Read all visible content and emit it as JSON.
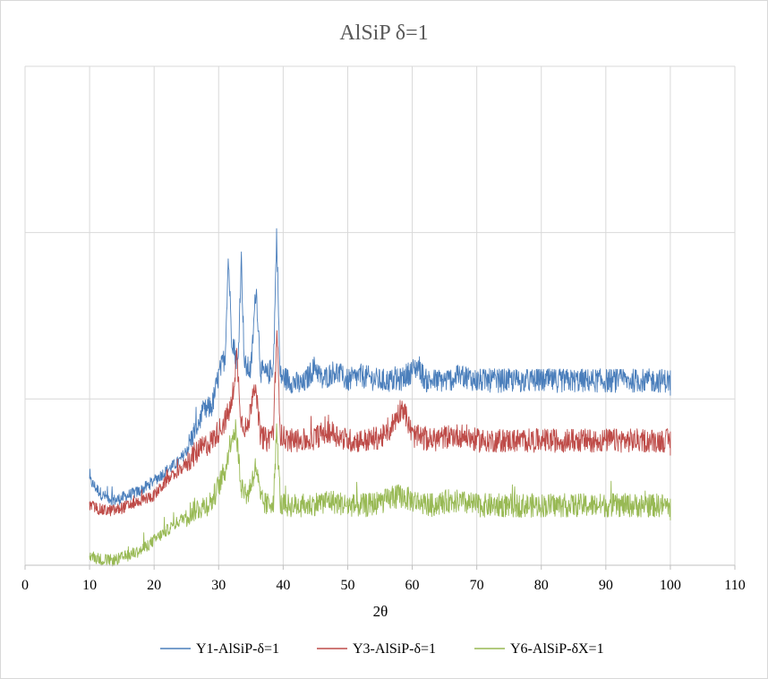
{
  "chart_data": {
    "type": "line",
    "title": "AlSiP δ=1",
    "xlabel": "2θ",
    "ylabel": "",
    "xlim": [
      0,
      110
    ],
    "xticks": [
      "0",
      "10",
      "20",
      "30",
      "40",
      "50",
      "60",
      "70",
      "80",
      "90",
      "100",
      "110"
    ],
    "grid": true,
    "legend_position": "bottom",
    "series": [
      {
        "name": "Y1-AlSiP-δ=1",
        "color": "#4a7ebb",
        "points": [
          [
            10,
            0.17
          ],
          [
            12,
            0.14
          ],
          [
            14,
            0.13
          ],
          [
            16,
            0.14
          ],
          [
            18,
            0.15
          ],
          [
            20,
            0.17
          ],
          [
            22,
            0.19
          ],
          [
            24,
            0.21
          ],
          [
            25,
            0.23
          ],
          [
            26,
            0.26
          ],
          [
            27,
            0.29
          ],
          [
            28,
            0.31
          ],
          [
            29,
            0.32
          ],
          [
            30,
            0.38
          ],
          [
            31,
            0.42
          ],
          [
            31.5,
            0.62
          ],
          [
            32,
            0.46
          ],
          [
            33,
            0.4
          ],
          [
            33.5,
            0.62
          ],
          [
            34,
            0.4
          ],
          [
            35,
            0.39
          ],
          [
            35.8,
            0.56
          ],
          [
            36.5,
            0.39
          ],
          [
            37.5,
            0.38
          ],
          [
            38.5,
            0.4
          ],
          [
            39,
            0.67
          ],
          [
            39.5,
            0.38
          ],
          [
            41,
            0.37
          ],
          [
            43,
            0.36
          ],
          [
            45,
            0.4
          ],
          [
            46,
            0.37
          ],
          [
            48,
            0.39
          ],
          [
            50,
            0.37
          ],
          [
            52,
            0.38
          ],
          [
            55,
            0.37
          ],
          [
            58,
            0.37
          ],
          [
            61,
            0.4
          ],
          [
            62,
            0.37
          ],
          [
            65,
            0.37
          ],
          [
            68,
            0.38
          ],
          [
            70,
            0.37
          ],
          [
            75,
            0.37
          ],
          [
            80,
            0.37
          ],
          [
            85,
            0.37
          ],
          [
            90,
            0.37
          ],
          [
            95,
            0.37
          ],
          [
            100,
            0.37
          ]
        ]
      },
      {
        "name": "Y3-AlSiP-δ=1",
        "color": "#be4b48",
        "points": [
          [
            10,
            0.12
          ],
          [
            12,
            0.11
          ],
          [
            14,
            0.11
          ],
          [
            16,
            0.12
          ],
          [
            18,
            0.13
          ],
          [
            20,
            0.14
          ],
          [
            22,
            0.17
          ],
          [
            24,
            0.19
          ],
          [
            26,
            0.22
          ],
          [
            28,
            0.24
          ],
          [
            29,
            0.25
          ],
          [
            30,
            0.27
          ],
          [
            31,
            0.29
          ],
          [
            32,
            0.32
          ],
          [
            32.8,
            0.42
          ],
          [
            33.5,
            0.29
          ],
          [
            34.5,
            0.27
          ],
          [
            35.5,
            0.37
          ],
          [
            36.5,
            0.26
          ],
          [
            37.5,
            0.25
          ],
          [
            38.5,
            0.27
          ],
          [
            39,
            0.47
          ],
          [
            39.6,
            0.26
          ],
          [
            41,
            0.25
          ],
          [
            44,
            0.25
          ],
          [
            47,
            0.27
          ],
          [
            50,
            0.25
          ],
          [
            53,
            0.25
          ],
          [
            56,
            0.26
          ],
          [
            58.5,
            0.32
          ],
          [
            60,
            0.26
          ],
          [
            63,
            0.25
          ],
          [
            66,
            0.26
          ],
          [
            68,
            0.26
          ],
          [
            70,
            0.25
          ],
          [
            75,
            0.25
          ],
          [
            80,
            0.25
          ],
          [
            85,
            0.25
          ],
          [
            90,
            0.25
          ],
          [
            95,
            0.25
          ],
          [
            100,
            0.25
          ]
        ]
      },
      {
        "name": "Y6-AlSiP-δX=1",
        "color": "#98b954",
        "points": [
          [
            10,
            0.02
          ],
          [
            12,
            0.01
          ],
          [
            14,
            0.01
          ],
          [
            16,
            0.02
          ],
          [
            18,
            0.03
          ],
          [
            20,
            0.05
          ],
          [
            22,
            0.07
          ],
          [
            24,
            0.09
          ],
          [
            26,
            0.11
          ],
          [
            28,
            0.12
          ],
          [
            29,
            0.13
          ],
          [
            30,
            0.16
          ],
          [
            31,
            0.19
          ],
          [
            32,
            0.26
          ],
          [
            32.7,
            0.27
          ],
          [
            33.5,
            0.16
          ],
          [
            34.5,
            0.14
          ],
          [
            35.8,
            0.2
          ],
          [
            36.5,
            0.13
          ],
          [
            37.5,
            0.12
          ],
          [
            38.5,
            0.13
          ],
          [
            39,
            0.27
          ],
          [
            39.6,
            0.12
          ],
          [
            41,
            0.12
          ],
          [
            44,
            0.12
          ],
          [
            47,
            0.13
          ],
          [
            50,
            0.12
          ],
          [
            53,
            0.12
          ],
          [
            56,
            0.13
          ],
          [
            58,
            0.14
          ],
          [
            60,
            0.13
          ],
          [
            63,
            0.12
          ],
          [
            66,
            0.13
          ],
          [
            70,
            0.12
          ],
          [
            75,
            0.12
          ],
          [
            80,
            0.12
          ],
          [
            85,
            0.12
          ],
          [
            90,
            0.12
          ],
          [
            95,
            0.12
          ],
          [
            100,
            0.12
          ]
        ]
      }
    ]
  }
}
